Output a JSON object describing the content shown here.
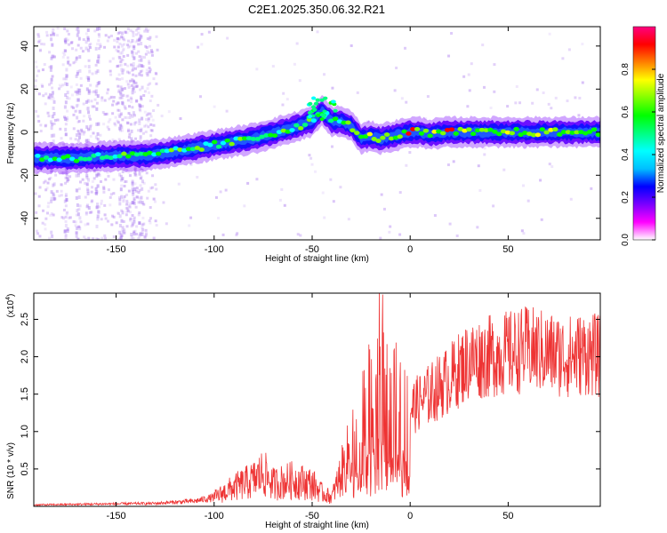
{
  "title": "C2E1.2025.350.06.32.R21",
  "chart_data": [
    {
      "type": "heatmap",
      "xlabel": "Height of straight line (km)",
      "ylabel": "Frequency (Hz)",
      "xlim": [
        -192,
        97
      ],
      "ylim": [
        -50,
        49
      ],
      "xticks": [
        -150,
        -100,
        -50,
        0,
        50
      ],
      "yticks": [
        -40,
        -20,
        0,
        20,
        40
      ],
      "colorbar": {
        "label": "Normalized spectral amplitude",
        "range": [
          0.0,
          1.0
        ],
        "ticks": [
          "0.0",
          "0.2",
          "0.4",
          "0.6",
          "0.8"
        ],
        "colors": [
          "#ffffff",
          "#ff00ff",
          "#7a00ff",
          "#0000ff",
          "#00bfff",
          "#00ffff",
          "#00ff80",
          "#00ff00",
          "#80ff00",
          "#ffff00",
          "#ff8000",
          "#ff0000",
          "#ff0080"
        ]
      },
      "ridge": {
        "x": [
          -192,
          -170,
          -150,
          -135,
          -120,
          -100,
          -80,
          -60,
          -50,
          -45,
          -40,
          -35,
          -30,
          -25,
          -20,
          -15,
          -10,
          -5,
          0,
          5,
          10,
          20,
          40,
          60,
          80,
          97
        ],
        "y": [
          -12,
          -12,
          -11,
          -11,
          -9,
          -6,
          -3,
          2,
          5,
          10,
          5,
          5,
          3,
          -3,
          -2,
          -3,
          -2,
          -1,
          0,
          0,
          -1,
          0,
          0,
          0,
          0,
          0
        ]
      }
    },
    {
      "type": "line",
      "xlabel": "Height of straight line (km)",
      "ylabel": "SNR (10 * v/v)",
      "scale_label_base": "(x10",
      "scale_label_exp": "4",
      "scale_label_end": ")",
      "xlim": [
        -192,
        97
      ],
      "ylim": [
        0,
        2.85
      ],
      "xticks": [
        -150,
        -100,
        -50,
        0,
        50
      ],
      "yticks": [
        "0.5",
        "1.0",
        "1.5",
        "2.0",
        "2.5"
      ],
      "series_color": "#ee3333",
      "envelope": {
        "x": [
          -192,
          -130,
          -110,
          -100,
          -90,
          -80,
          -75,
          -70,
          -60,
          -50,
          -45,
          -40,
          -35,
          -30,
          -25,
          -20,
          -15,
          -10,
          0,
          10,
          20,
          30,
          40,
          50,
          60,
          70,
          80,
          90,
          97
        ],
        "y": [
          0.02,
          0.04,
          0.07,
          0.12,
          0.25,
          0.35,
          0.45,
          0.3,
          0.35,
          0.3,
          0.18,
          0.12,
          0.45,
          0.75,
          0.9,
          1.3,
          1.6,
          1.1,
          1.3,
          1.5,
          1.7,
          1.95,
          2.0,
          2.05,
          2.1,
          2.05,
          2.0,
          2.05,
          2.0
        ]
      }
    }
  ]
}
